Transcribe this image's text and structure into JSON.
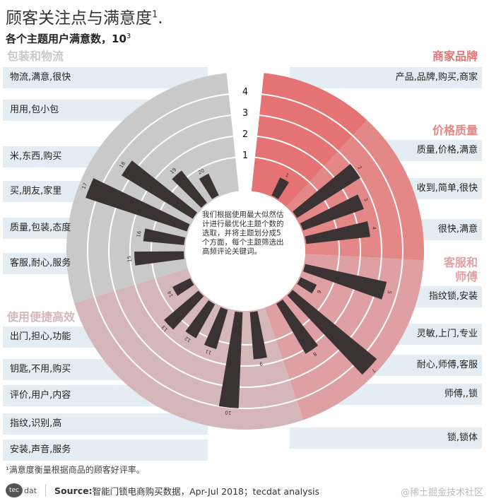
{
  "title": "顾客关注点与满意度",
  "title_sup": "1",
  "title_suffix": ".",
  "subtitle": "各个主题用户满意数，10",
  "subtitle_sup": "3",
  "center_text": "我们根据使用最大似然估计进行最优化主题个数的选取，并将主题划分成5个方面，每个主题筛选出高频评论关键词。",
  "footnote": "¹满意度衡量根据商品的顾客好评率。",
  "footer": {
    "logo": "tecdat",
    "source_label": "Source:",
    "source_text": " 智能门锁电商购买数据，Apr-Jul 2018；tecdat analysis",
    "watermark": "@稀土掘金技术社区"
  },
  "colors": {
    "bar": "#3b3333",
    "ring": "#ffffff",
    "band": "#e4edf3"
  },
  "chart_data": {
    "type": "radial-bar",
    "ring_ticks": [
      1,
      2,
      3,
      4
    ],
    "rlim": [
      0,
      5
    ],
    "groups": [
      {
        "name": "商家品牌",
        "color": "#e57373",
        "bars": [
          1
        ],
        "keywords": [
          "产品,品牌,购买,商家"
        ]
      },
      {
        "name": "价格质量",
        "color": "#e38787",
        "bars": [
          2,
          3,
          4
        ],
        "keywords": [
          "质量,价格,满意",
          "收到,简单,很快",
          "很快,满意"
        ]
      },
      {
        "name": "客服和\n师傅",
        "color": "#dfa0a3",
        "bars": [
          5,
          6,
          7,
          8,
          9
        ],
        "keywords": [
          "指纹锁,安装",
          "灵敏,上门,专业",
          "耐心,师傅,客服",
          "师傅,,锁",
          "锁,锁体"
        ]
      },
      {
        "name": "使用便捷高效",
        "color": "#d5b7ba",
        "bars": [
          10,
          11,
          12,
          13,
          14
        ],
        "keywords": [
          "出门,担心,功能",
          "钥匙,不用,购买",
          "评价,用户,内容",
          "指纹,识别,高",
          "安装,声音,服务"
        ]
      },
      {
        "name": "包装和物流",
        "color": "#c9c9c9",
        "bars": [
          15,
          16,
          17,
          18,
          19,
          20
        ],
        "keywords": [
          "客服,耐心,服务",
          "质量,包装,态度",
          "买,朋友,家里",
          "米,东西,购买",
          "用用,包小包",
          "物流,满意,很快"
        ]
      }
    ],
    "bar_ids": [
      1,
      2,
      3,
      4,
      5,
      6,
      7,
      8,
      9,
      10,
      11,
      12,
      13,
      14,
      15,
      16,
      17,
      18,
      19,
      20
    ],
    "values": [
      0.4,
      3.0,
      2.5,
      2.5,
      3.4,
      0.3,
      4.6,
      2.2,
      1.7,
      4.0,
      1.4,
      1.3,
      1.6,
      0.4,
      1.8,
      1.4,
      4.5,
      3.4,
      1.4,
      0.6
    ]
  }
}
